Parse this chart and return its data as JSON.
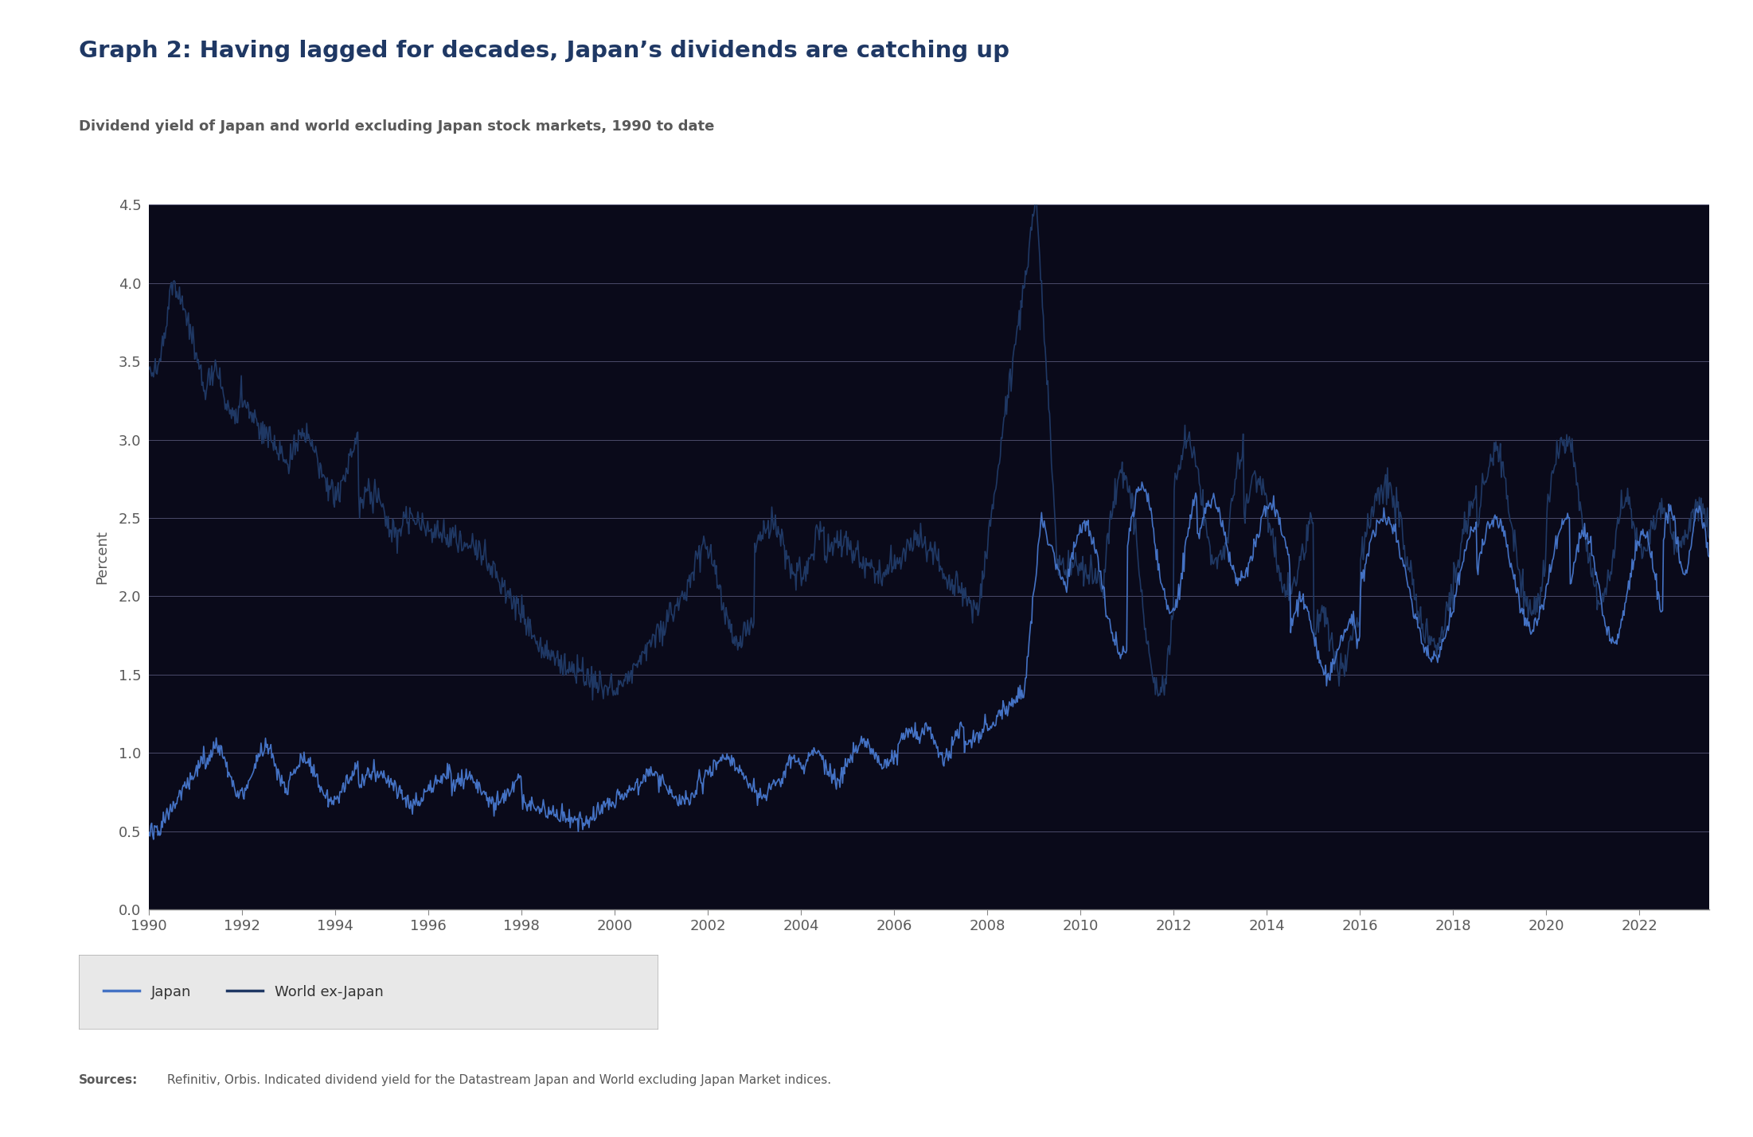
{
  "title": "Graph 2: Having lagged for decades, Japan’s dividends are catching up",
  "subtitle": "Dividend yield of Japan and world excluding Japan stock markets, 1990 to date",
  "ylabel": "Percent",
  "sources_bold": "Sources:",
  "sources_rest": " Refinitiv, Orbis. Indicated dividend yield for the Datastream Japan and World excluding Japan Market indices.",
  "legend_labels": [
    "Japan",
    "World ex-Japan"
  ],
  "japan_color": "#4472C4",
  "world_color": "#1F3864",
  "background_color": "#FFFFFF",
  "plot_background": "#0A0A1A",
  "grid_color": "#4A4A6A",
  "title_color": "#1F3864",
  "subtitle_color": "#595959",
  "axis_label_color": "#595959",
  "tick_label_color": "#595959",
  "ylim": [
    0,
    4.5
  ],
  "yticks": [
    0,
    0.5,
    1.0,
    1.5,
    2.0,
    2.5,
    3.0,
    3.5,
    4.0,
    4.5
  ],
  "xtick_years": [
    1990,
    1992,
    1994,
    1996,
    1998,
    2000,
    2002,
    2004,
    2006,
    2008,
    2010,
    2012,
    2014,
    2016,
    2018,
    2020,
    2022
  ],
  "xlim": [
    1990,
    2023.5
  ]
}
